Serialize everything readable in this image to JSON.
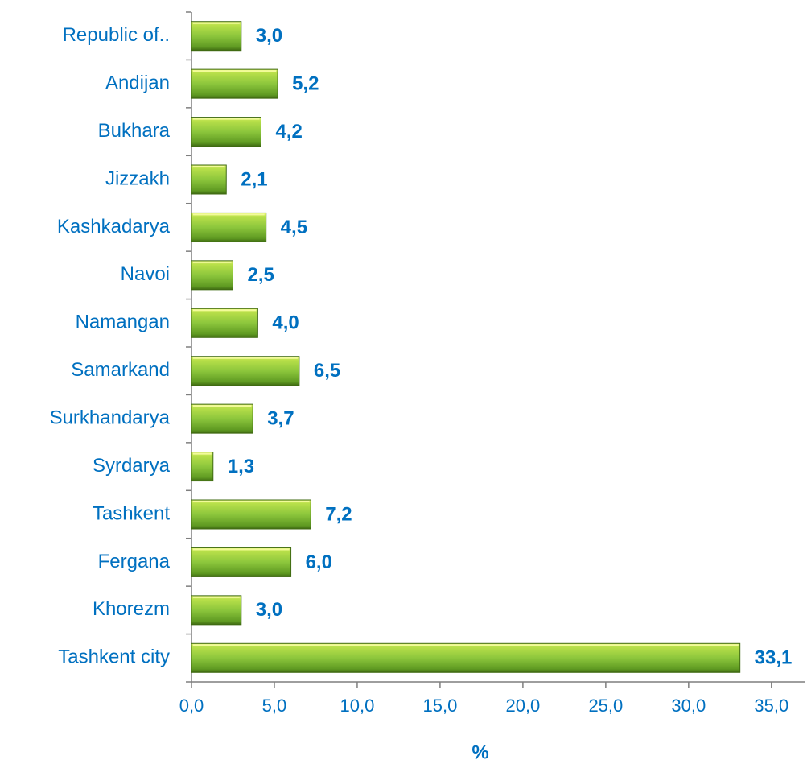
{
  "chart_data": {
    "type": "barh",
    "x_label": "%",
    "categories": [
      "Republic of..",
      "Andijan",
      "Bukhara",
      "Jizzakh",
      "Kashkadarya",
      "Navoi",
      "Namangan",
      "Samarkand",
      "Surkhandarya",
      "Syrdarya",
      "Tashkent",
      "Fergana",
      "Khorezm",
      "Tashkent city"
    ],
    "values": [
      3.0,
      5.2,
      4.2,
      2.1,
      4.5,
      2.5,
      4.0,
      6.5,
      3.7,
      1.3,
      7.2,
      6.0,
      3.0,
      33.1
    ],
    "value_labels": [
      "3,0",
      "5,2",
      "4,2",
      "2,1",
      "4,5",
      "2,5",
      "4,0",
      "6,5",
      "3,7",
      "1,3",
      "7,2",
      "6,0",
      "3,0",
      "33,1"
    ],
    "color": "#8cc63c",
    "xlim": [
      0,
      37
    ],
    "xticks": [
      {
        "value": 0,
        "label": "0,0"
      },
      {
        "value": 5,
        "label": "5,0"
      },
      {
        "value": 10,
        "label": "10,0"
      },
      {
        "value": 15,
        "label": "15,0"
      },
      {
        "value": 20,
        "label": "20,0"
      },
      {
        "value": 25,
        "label": "25,0"
      },
      {
        "value": 30,
        "label": "30,0"
      },
      {
        "value": 35,
        "label": "35,0"
      }
    ],
    "grid": false
  }
}
